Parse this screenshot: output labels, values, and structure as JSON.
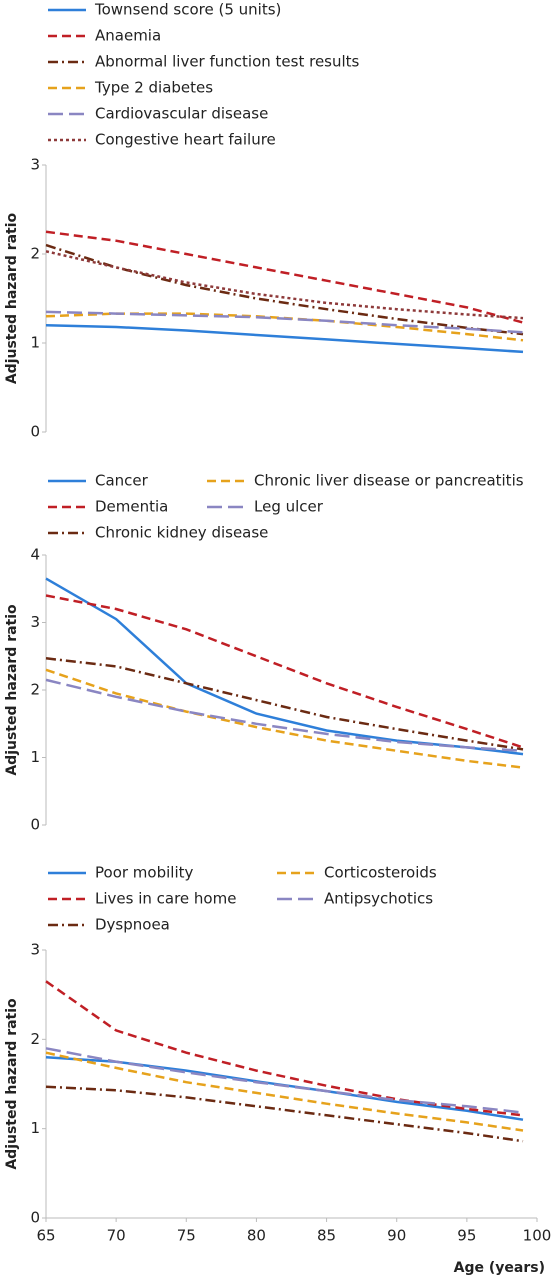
{
  "chart_data": [
    {
      "type": "line",
      "y_label": "Adjusted hazard ratio",
      "x": [
        65,
        70,
        75,
        80,
        85,
        90,
        95,
        99
      ],
      "xlim": [
        65,
        100
      ],
      "ylim": [
        0,
        3
      ],
      "yticks": [
        0,
        1,
        2,
        3
      ],
      "series": [
        {
          "name": "Townsend score (5 units)",
          "color": "#2e7fd9",
          "dash": "solid",
          "values": [
            1.2,
            1.18,
            1.14,
            1.09,
            1.04,
            0.99,
            0.94,
            0.9
          ]
        },
        {
          "name": "Anaemia",
          "color": "#c01f25",
          "dash": "dash",
          "values": [
            2.25,
            2.15,
            2.0,
            1.85,
            1.7,
            1.55,
            1.4,
            1.23
          ]
        },
        {
          "name": "Abnormal liver function test results",
          "color": "#6b2a12",
          "dash": "dashdot",
          "values": [
            2.1,
            1.85,
            1.65,
            1.5,
            1.38,
            1.27,
            1.17,
            1.1
          ]
        },
        {
          "name": "Type 2 diabetes",
          "color": "#e6a21c",
          "dash": "dash",
          "values": [
            1.3,
            1.33,
            1.33,
            1.3,
            1.25,
            1.18,
            1.1,
            1.03
          ]
        },
        {
          "name": "Cardiovascular disease",
          "color": "#8a86c2",
          "dash": "longdash",
          "values": [
            1.35,
            1.33,
            1.31,
            1.29,
            1.25,
            1.2,
            1.16,
            1.12
          ]
        },
        {
          "name": "Congestive heart failure",
          "color": "#8e3a3a",
          "dash": "dot",
          "values": [
            2.03,
            1.85,
            1.68,
            1.55,
            1.45,
            1.38,
            1.32,
            1.28
          ]
        }
      ]
    },
    {
      "type": "line",
      "y_label": "Adjusted hazard ratio",
      "x": [
        65,
        70,
        75,
        80,
        85,
        90,
        95,
        99
      ],
      "xlim": [
        65,
        100
      ],
      "ylim": [
        0,
        4
      ],
      "yticks": [
        0,
        1,
        2,
        3,
        4
      ],
      "series": [
        {
          "name": "Cancer",
          "color": "#2e7fd9",
          "dash": "solid",
          "values": [
            3.65,
            3.05,
            2.1,
            1.65,
            1.4,
            1.25,
            1.15,
            1.05
          ]
        },
        {
          "name": "Dementia",
          "color": "#c01f25",
          "dash": "dash",
          "values": [
            3.4,
            3.2,
            2.9,
            2.5,
            2.1,
            1.75,
            1.42,
            1.15
          ]
        },
        {
          "name": "Chronic kidney disease",
          "color": "#6b2a12",
          "dash": "dashdot",
          "values": [
            2.47,
            2.35,
            2.1,
            1.85,
            1.6,
            1.42,
            1.25,
            1.12
          ]
        },
        {
          "name": "Chronic liver disease or pancreatitis",
          "color": "#e6a21c",
          "dash": "dash",
          "values": [
            2.3,
            1.95,
            1.68,
            1.45,
            1.25,
            1.1,
            0.95,
            0.85
          ]
        },
        {
          "name": "Leg ulcer",
          "color": "#8a86c2",
          "dash": "longdash",
          "values": [
            2.15,
            1.9,
            1.68,
            1.5,
            1.35,
            1.23,
            1.15,
            1.1
          ]
        }
      ]
    },
    {
      "type": "line",
      "y_label": "Adjusted hazard ratio",
      "x_label": "Age (years)",
      "x": [
        65,
        70,
        75,
        80,
        85,
        90,
        95,
        99
      ],
      "xlim": [
        65,
        100
      ],
      "xticks": [
        65,
        70,
        75,
        80,
        85,
        90,
        95,
        100
      ],
      "ylim": [
        0,
        3
      ],
      "yticks": [
        0,
        1,
        2,
        3
      ],
      "series": [
        {
          "name": "Poor mobility",
          "color": "#2e7fd9",
          "dash": "solid",
          "values": [
            1.8,
            1.75,
            1.65,
            1.53,
            1.42,
            1.3,
            1.2,
            1.1
          ]
        },
        {
          "name": "Lives in care home",
          "color": "#c01f25",
          "dash": "dash",
          "values": [
            2.65,
            2.1,
            1.85,
            1.65,
            1.48,
            1.33,
            1.22,
            1.15
          ]
        },
        {
          "name": "Dyspnoea",
          "color": "#6b2a12",
          "dash": "dashdot",
          "values": [
            1.47,
            1.43,
            1.35,
            1.25,
            1.15,
            1.05,
            0.95,
            0.86
          ]
        },
        {
          "name": "Corticosteroids",
          "color": "#e6a21c",
          "dash": "dash",
          "values": [
            1.85,
            1.68,
            1.52,
            1.4,
            1.28,
            1.17,
            1.07,
            0.98
          ]
        },
        {
          "name": "Antipsychotics",
          "color": "#8a86c2",
          "dash": "longdash",
          "values": [
            1.9,
            1.75,
            1.63,
            1.52,
            1.42,
            1.32,
            1.25,
            1.18
          ]
        }
      ]
    }
  ]
}
